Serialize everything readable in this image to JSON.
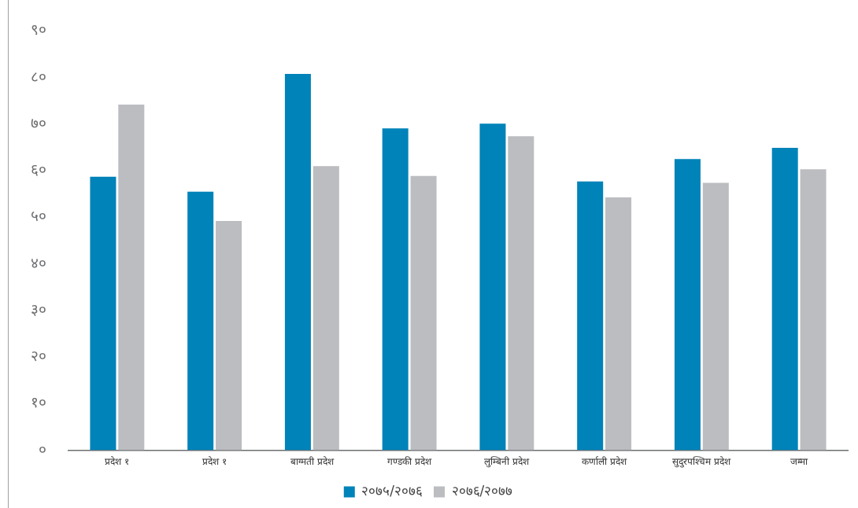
{
  "chart_data": {
    "type": "bar",
    "categories": [
      "प्रदेश १",
      "प्रदेश १",
      "बाग्मती प्रदेश",
      "गण्डकी प्रदेश",
      "लुम्बिनी प्रदेश",
      "कर्णाली प्रदेश",
      "सुदुरपश्चिम प्रदेश",
      "जम्मा"
    ],
    "series": [
      {
        "name": "२०७५/२०७६",
        "color": "#0083b9",
        "values": [
          58.7,
          55.5,
          80.8,
          69.1,
          70.1,
          57.7,
          62.5,
          64.9
        ]
      },
      {
        "name": "२०७६/२०७७",
        "color": "#bcbdc0",
        "values": [
          74.2,
          49.2,
          61.0,
          58.9,
          67.4,
          54.3,
          57.4,
          60.3
        ]
      }
    ],
    "ylim": [
      0,
      90
    ],
    "yticks": [
      {
        "value": 0,
        "label": "०"
      },
      {
        "value": 10,
        "label": "१०"
      },
      {
        "value": 20,
        "label": "२०"
      },
      {
        "value": 30,
        "label": "३०"
      },
      {
        "value": 40,
        "label": "४०"
      },
      {
        "value": 50,
        "label": "५०"
      },
      {
        "value": 60,
        "label": "६०"
      },
      {
        "value": 70,
        "label": "७०"
      },
      {
        "value": 80,
        "label": "८०"
      },
      {
        "value": 90,
        "label": "९०"
      }
    ],
    "grid": false,
    "legend": "bottom"
  }
}
